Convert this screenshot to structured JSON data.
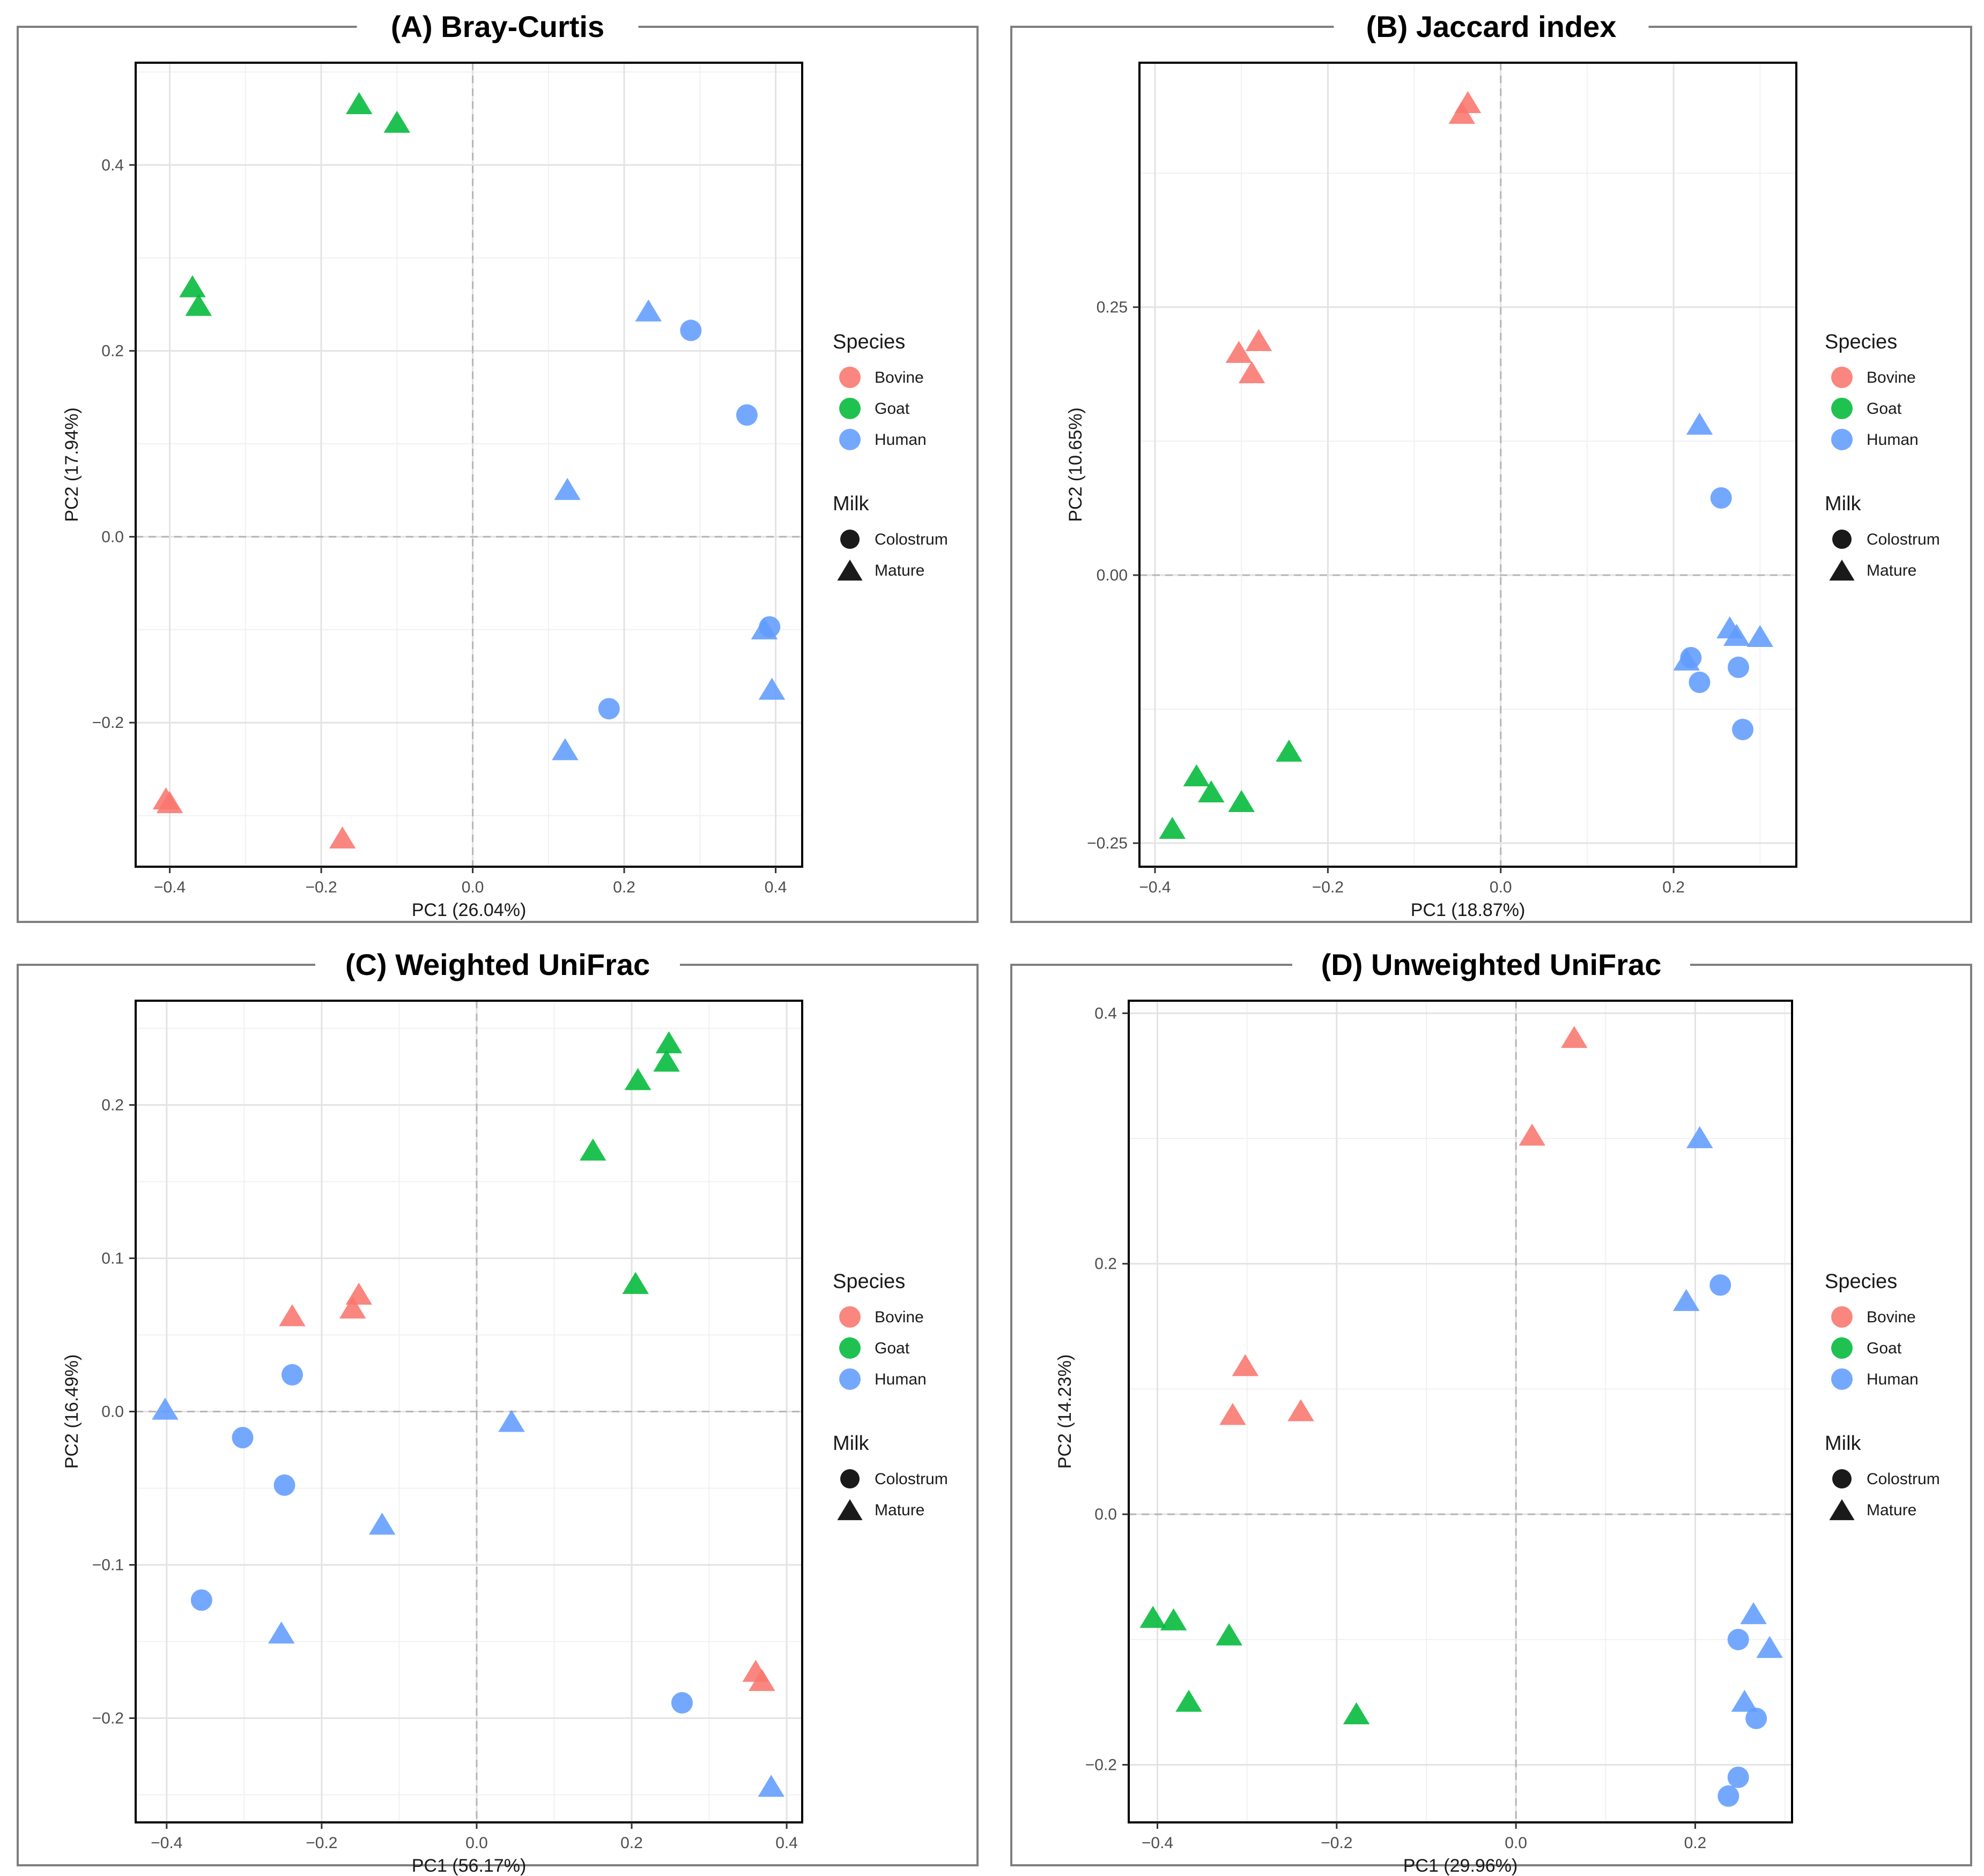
{
  "legend": {
    "species_title": "Species",
    "milk_title": "Milk",
    "species": [
      {
        "name": "Bovine",
        "color": "#F8766D"
      },
      {
        "name": "Goat",
        "color": "#00BA38"
      },
      {
        "name": "Human",
        "color": "#619CFF"
      }
    ],
    "milk": [
      {
        "name": "Colostrum",
        "shape": "circle"
      },
      {
        "name": "Mature",
        "shape": "triangle"
      }
    ]
  },
  "chart_data": [
    {
      "type": "scatter",
      "title": "(A) Bray-Curtis",
      "xlabel": "PC1 (26.04%)",
      "ylabel": "PC2 (17.94%)",
      "xlim": [
        -0.445,
        0.435
      ],
      "ylim": [
        -0.355,
        0.51
      ],
      "xticks": [
        -0.4,
        -0.2,
        0.0,
        0.2,
        0.4
      ],
      "xtick_labels": [
        "−0.4",
        "−0.2",
        "0.0",
        "0.2",
        "0.4"
      ],
      "yticks": [
        -0.2,
        0.0,
        0.2,
        0.4
      ],
      "ytick_labels": [
        "−0.2",
        "0.0",
        "0.2",
        "0.4"
      ],
      "points": [
        {
          "x": -0.15,
          "y": 0.465,
          "species": "Goat",
          "milk": "Mature"
        },
        {
          "x": -0.1,
          "y": 0.445,
          "species": "Goat",
          "milk": "Mature"
        },
        {
          "x": -0.37,
          "y": 0.268,
          "species": "Goat",
          "milk": "Mature"
        },
        {
          "x": -0.362,
          "y": 0.248,
          "species": "Goat",
          "milk": "Mature"
        },
        {
          "x": 0.232,
          "y": 0.242,
          "species": "Human",
          "milk": "Mature"
        },
        {
          "x": 0.288,
          "y": 0.222,
          "species": "Human",
          "milk": "Colostrum"
        },
        {
          "x": 0.362,
          "y": 0.131,
          "species": "Human",
          "milk": "Colostrum"
        },
        {
          "x": 0.125,
          "y": 0.05,
          "species": "Human",
          "milk": "Mature"
        },
        {
          "x": 0.385,
          "y": -0.1,
          "species": "Human",
          "milk": "Mature"
        },
        {
          "x": 0.392,
          "y": -0.097,
          "species": "Human",
          "milk": "Colostrum"
        },
        {
          "x": 0.395,
          "y": -0.165,
          "species": "Human",
          "milk": "Mature"
        },
        {
          "x": 0.18,
          "y": -0.185,
          "species": "Human",
          "milk": "Colostrum"
        },
        {
          "x": 0.122,
          "y": -0.23,
          "species": "Human",
          "milk": "Mature"
        },
        {
          "x": -0.405,
          "y": -0.283,
          "species": "Bovine",
          "milk": "Mature"
        },
        {
          "x": -0.4,
          "y": -0.287,
          "species": "Bovine",
          "milk": "Mature"
        },
        {
          "x": -0.172,
          "y": -0.325,
          "species": "Bovine",
          "milk": "Mature"
        }
      ]
    },
    {
      "type": "scatter",
      "title": "(B) Jaccard index",
      "xlabel": "PC1 (18.87%)",
      "ylabel": "PC2 (10.65%)",
      "xlim": [
        -0.418,
        0.342
      ],
      "ylim": [
        -0.272,
        0.478
      ],
      "xticks": [
        -0.4,
        -0.2,
        0.0,
        0.2
      ],
      "xtick_labels": [
        "−0.4",
        "−0.2",
        "0.0",
        "0.2"
      ],
      "yticks": [
        -0.25,
        0.0,
        0.25
      ],
      "ytick_labels": [
        "−0.25",
        "0.00",
        "0.25"
      ],
      "points": [
        {
          "x": -0.038,
          "y": 0.44,
          "species": "Bovine",
          "milk": "Mature"
        },
        {
          "x": -0.045,
          "y": 0.43,
          "species": "Bovine",
          "milk": "Mature"
        },
        {
          "x": -0.28,
          "y": 0.218,
          "species": "Bovine",
          "milk": "Mature"
        },
        {
          "x": -0.303,
          "y": 0.207,
          "species": "Bovine",
          "milk": "Mature"
        },
        {
          "x": -0.288,
          "y": 0.188,
          "species": "Bovine",
          "milk": "Mature"
        },
        {
          "x": 0.23,
          "y": 0.14,
          "species": "Human",
          "milk": "Mature"
        },
        {
          "x": 0.255,
          "y": 0.072,
          "species": "Human",
          "milk": "Colostrum"
        },
        {
          "x": 0.265,
          "y": -0.05,
          "species": "Human",
          "milk": "Mature"
        },
        {
          "x": 0.273,
          "y": -0.057,
          "species": "Human",
          "milk": "Mature"
        },
        {
          "x": 0.3,
          "y": -0.058,
          "species": "Human",
          "milk": "Mature"
        },
        {
          "x": 0.215,
          "y": -0.08,
          "species": "Human",
          "milk": "Mature"
        },
        {
          "x": 0.22,
          "y": -0.077,
          "species": "Human",
          "milk": "Colostrum"
        },
        {
          "x": 0.275,
          "y": -0.086,
          "species": "Human",
          "milk": "Colostrum"
        },
        {
          "x": 0.23,
          "y": -0.1,
          "species": "Human",
          "milk": "Colostrum"
        },
        {
          "x": 0.28,
          "y": -0.144,
          "species": "Human",
          "milk": "Colostrum"
        },
        {
          "x": -0.245,
          "y": -0.165,
          "species": "Goat",
          "milk": "Mature"
        },
        {
          "x": -0.352,
          "y": -0.188,
          "species": "Goat",
          "milk": "Mature"
        },
        {
          "x": -0.335,
          "y": -0.203,
          "species": "Goat",
          "milk": "Mature"
        },
        {
          "x": -0.3,
          "y": -0.212,
          "species": "Goat",
          "milk": "Mature"
        },
        {
          "x": -0.38,
          "y": -0.237,
          "species": "Goat",
          "milk": "Mature"
        }
      ]
    },
    {
      "type": "scatter",
      "title": "(C) Weighted UniFrac",
      "xlabel": "PC1 (56.17%)",
      "ylabel": "PC2 (16.49%)",
      "xlim": [
        -0.44,
        0.42
      ],
      "ylim": [
        -0.268,
        0.268
      ],
      "xticks": [
        -0.4,
        -0.2,
        0.0,
        0.2,
        0.4
      ],
      "xtick_labels": [
        "−0.4",
        "−0.2",
        "0.0",
        "0.2",
        "0.4"
      ],
      "yticks": [
        -0.2,
        -0.1,
        0.0,
        0.1,
        0.2
      ],
      "ytick_labels": [
        "−0.2",
        "−0.1",
        "0.0",
        "0.1",
        "0.2"
      ],
      "points": [
        {
          "x": 0.248,
          "y": 0.24,
          "species": "Goat",
          "milk": "Mature"
        },
        {
          "x": 0.245,
          "y": 0.228,
          "species": "Goat",
          "milk": "Mature"
        },
        {
          "x": 0.208,
          "y": 0.216,
          "species": "Goat",
          "milk": "Mature"
        },
        {
          "x": 0.15,
          "y": 0.17,
          "species": "Goat",
          "milk": "Mature"
        },
        {
          "x": 0.205,
          "y": 0.083,
          "species": "Goat",
          "milk": "Mature"
        },
        {
          "x": -0.152,
          "y": 0.076,
          "species": "Bovine",
          "milk": "Mature"
        },
        {
          "x": -0.16,
          "y": 0.067,
          "species": "Bovine",
          "milk": "Mature"
        },
        {
          "x": -0.238,
          "y": 0.062,
          "species": "Bovine",
          "milk": "Mature"
        },
        {
          "x": -0.238,
          "y": 0.024,
          "species": "Human",
          "milk": "Colostrum"
        },
        {
          "x": -0.402,
          "y": 0.001,
          "species": "Human",
          "milk": "Mature"
        },
        {
          "x": 0.045,
          "y": -0.007,
          "species": "Human",
          "milk": "Mature"
        },
        {
          "x": -0.302,
          "y": -0.017,
          "species": "Human",
          "milk": "Colostrum"
        },
        {
          "x": -0.248,
          "y": -0.048,
          "species": "Human",
          "milk": "Colostrum"
        },
        {
          "x": -0.122,
          "y": -0.074,
          "species": "Human",
          "milk": "Mature"
        },
        {
          "x": -0.355,
          "y": -0.123,
          "species": "Human",
          "milk": "Colostrum"
        },
        {
          "x": -0.252,
          "y": -0.145,
          "species": "Human",
          "milk": "Mature"
        },
        {
          "x": 0.36,
          "y": -0.17,
          "species": "Bovine",
          "milk": "Mature"
        },
        {
          "x": 0.368,
          "y": -0.176,
          "species": "Bovine",
          "milk": "Mature"
        },
        {
          "x": 0.265,
          "y": -0.19,
          "species": "Human",
          "milk": "Colostrum"
        },
        {
          "x": 0.38,
          "y": -0.245,
          "species": "Human",
          "milk": "Mature"
        }
      ]
    },
    {
      "type": "scatter",
      "title": "(D) Unweighted UniFrac",
      "xlabel": "PC1 (29.96%)",
      "ylabel": "PC2 (14.23%)",
      "xlim": [
        -0.432,
        0.308
      ],
      "ylim": [
        -0.246,
        0.41
      ],
      "xticks": [
        -0.4,
        -0.2,
        0.0,
        0.2
      ],
      "xtick_labels": [
        "−0.4",
        "−0.2",
        "0.0",
        "0.2"
      ],
      "yticks": [
        -0.2,
        0.0,
        0.2,
        0.4
      ],
      "ytick_labels": [
        "−0.2",
        "0.0",
        "0.2",
        "0.4"
      ],
      "points": [
        {
          "x": 0.065,
          "y": 0.38,
          "species": "Bovine",
          "milk": "Mature"
        },
        {
          "x": 0.018,
          "y": 0.302,
          "species": "Bovine",
          "milk": "Mature"
        },
        {
          "x": 0.205,
          "y": 0.3,
          "species": "Human",
          "milk": "Mature"
        },
        {
          "x": 0.228,
          "y": 0.183,
          "species": "Human",
          "milk": "Colostrum"
        },
        {
          "x": 0.19,
          "y": 0.17,
          "species": "Human",
          "milk": "Mature"
        },
        {
          "x": -0.302,
          "y": 0.118,
          "species": "Bovine",
          "milk": "Mature"
        },
        {
          "x": -0.24,
          "y": 0.082,
          "species": "Bovine",
          "milk": "Mature"
        },
        {
          "x": -0.316,
          "y": 0.079,
          "species": "Bovine",
          "milk": "Mature"
        },
        {
          "x": -0.405,
          "y": -0.083,
          "species": "Goat",
          "milk": "Mature"
        },
        {
          "x": -0.382,
          "y": -0.085,
          "species": "Goat",
          "milk": "Mature"
        },
        {
          "x": -0.32,
          "y": -0.097,
          "species": "Goat",
          "milk": "Mature"
        },
        {
          "x": -0.365,
          "y": -0.15,
          "species": "Goat",
          "milk": "Mature"
        },
        {
          "x": -0.178,
          "y": -0.16,
          "species": "Goat",
          "milk": "Mature"
        },
        {
          "x": 0.265,
          "y": -0.08,
          "species": "Human",
          "milk": "Mature"
        },
        {
          "x": 0.248,
          "y": -0.1,
          "species": "Human",
          "milk": "Colostrum"
        },
        {
          "x": 0.283,
          "y": -0.107,
          "species": "Human",
          "milk": "Mature"
        },
        {
          "x": 0.255,
          "y": -0.15,
          "species": "Human",
          "milk": "Mature"
        },
        {
          "x": 0.268,
          "y": -0.163,
          "species": "Human",
          "milk": "Colostrum"
        },
        {
          "x": 0.248,
          "y": -0.21,
          "species": "Human",
          "milk": "Colostrum"
        },
        {
          "x": 0.237,
          "y": -0.225,
          "species": "Human",
          "milk": "Colostrum"
        }
      ]
    }
  ]
}
